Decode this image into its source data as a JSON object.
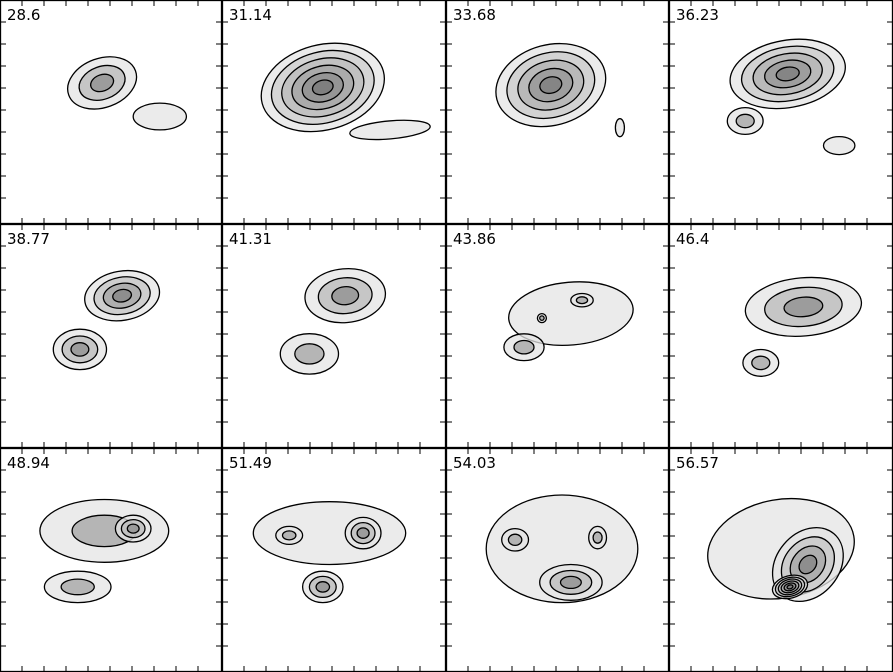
{
  "chart_data": {
    "type": "contour",
    "layout": {
      "rows": 3,
      "cols": 4
    },
    "panels": [
      {
        "label": "28.6",
        "blobs": [
          {
            "x": 0.46,
            "y": 0.37,
            "sx": 0.16,
            "sy": 0.11,
            "rot": -20,
            "levels": 3
          },
          {
            "x": 0.72,
            "y": 0.52,
            "sx": 0.12,
            "sy": 0.06,
            "rot": 0,
            "levels": 1
          }
        ]
      },
      {
        "label": "31.14",
        "blobs": [
          {
            "x": 0.45,
            "y": 0.39,
            "sx": 0.28,
            "sy": 0.19,
            "rot": -15,
            "levels": 6
          },
          {
            "x": 0.75,
            "y": 0.58,
            "sx": 0.18,
            "sy": 0.04,
            "rot": -5,
            "levels": 1
          }
        ]
      },
      {
        "label": "33.68",
        "blobs": [
          {
            "x": 0.47,
            "y": 0.38,
            "sx": 0.25,
            "sy": 0.18,
            "rot": -15,
            "levels": 5
          },
          {
            "x": 0.78,
            "y": 0.57,
            "sx": 0.02,
            "sy": 0.04,
            "rot": 0,
            "levels": 1
          }
        ]
      },
      {
        "label": "36.23",
        "blobs": [
          {
            "x": 0.53,
            "y": 0.33,
            "sx": 0.26,
            "sy": 0.15,
            "rot": -10,
            "levels": 5
          },
          {
            "x": 0.34,
            "y": 0.54,
            "sx": 0.08,
            "sy": 0.06,
            "rot": 0,
            "levels": 2
          },
          {
            "x": 0.76,
            "y": 0.65,
            "sx": 0.07,
            "sy": 0.04,
            "rot": 0,
            "levels": 1
          }
        ]
      },
      {
        "label": "38.77",
        "blobs": [
          {
            "x": 0.55,
            "y": 0.32,
            "sx": 0.17,
            "sy": 0.11,
            "rot": -10,
            "levels": 4
          },
          {
            "x": 0.36,
            "y": 0.56,
            "sx": 0.12,
            "sy": 0.09,
            "rot": 0,
            "levels": 3
          }
        ]
      },
      {
        "label": "41.31",
        "blobs": [
          {
            "x": 0.55,
            "y": 0.32,
            "sx": 0.18,
            "sy": 0.12,
            "rot": -5,
            "levels": 3
          },
          {
            "x": 0.39,
            "y": 0.58,
            "sx": 0.13,
            "sy": 0.09,
            "rot": 0,
            "levels": 2
          }
        ]
      },
      {
        "label": "43.86",
        "blobs": [
          {
            "x": 0.56,
            "y": 0.4,
            "sx": 0.28,
            "sy": 0.14,
            "rot": -5,
            "levels": 1
          },
          {
            "x": 0.35,
            "y": 0.55,
            "sx": 0.09,
            "sy": 0.06,
            "rot": 0,
            "levels": 2
          },
          {
            "x": 0.61,
            "y": 0.34,
            "sx": 0.05,
            "sy": 0.03,
            "rot": 0,
            "levels": 2
          },
          {
            "x": 0.43,
            "y": 0.42,
            "sx": 0.02,
            "sy": 0.02,
            "rot": 0,
            "levels": 2
          }
        ]
      },
      {
        "label": "46.4",
        "blobs": [
          {
            "x": 0.6,
            "y": 0.37,
            "sx": 0.26,
            "sy": 0.13,
            "rot": -5,
            "levels": 3
          },
          {
            "x": 0.41,
            "y": 0.62,
            "sx": 0.08,
            "sy": 0.06,
            "rot": 0,
            "levels": 2
          }
        ]
      },
      {
        "label": "48.94",
        "blobs": [
          {
            "x": 0.47,
            "y": 0.37,
            "sx": 0.29,
            "sy": 0.14,
            "rot": 0,
            "levels": 2
          },
          {
            "x": 0.6,
            "y": 0.36,
            "sx": 0.08,
            "sy": 0.06,
            "rot": 0,
            "levels": 3
          },
          {
            "x": 0.35,
            "y": 0.62,
            "sx": 0.15,
            "sy": 0.07,
            "rot": 0,
            "levels": 2
          }
        ]
      },
      {
        "label": "51.49",
        "blobs": [
          {
            "x": 0.48,
            "y": 0.38,
            "sx": 0.34,
            "sy": 0.14,
            "rot": 0,
            "levels": 1
          },
          {
            "x": 0.63,
            "y": 0.38,
            "sx": 0.08,
            "sy": 0.07,
            "rot": 0,
            "levels": 3
          },
          {
            "x": 0.3,
            "y": 0.39,
            "sx": 0.06,
            "sy": 0.04,
            "rot": 0,
            "levels": 2
          },
          {
            "x": 0.45,
            "y": 0.62,
            "sx": 0.09,
            "sy": 0.07,
            "rot": 0,
            "levels": 3
          }
        ]
      },
      {
        "label": "54.03",
        "blobs": [
          {
            "x": 0.52,
            "y": 0.45,
            "sx": 0.34,
            "sy": 0.24,
            "rot": 0,
            "levels": 1
          },
          {
            "x": 0.56,
            "y": 0.6,
            "sx": 0.14,
            "sy": 0.08,
            "rot": 0,
            "levels": 3
          },
          {
            "x": 0.31,
            "y": 0.41,
            "sx": 0.06,
            "sy": 0.05,
            "rot": 0,
            "levels": 2
          },
          {
            "x": 0.68,
            "y": 0.4,
            "sx": 0.04,
            "sy": 0.05,
            "rot": 0,
            "levels": 2
          }
        ]
      },
      {
        "label": "56.57",
        "blobs": [
          {
            "x": 0.5,
            "y": 0.45,
            "sx": 0.33,
            "sy": 0.22,
            "rot": -10,
            "levels": 1
          },
          {
            "x": 0.62,
            "y": 0.52,
            "sx": 0.14,
            "sy": 0.18,
            "rot": 40,
            "levels": 4
          },
          {
            "x": 0.54,
            "y": 0.62,
            "sx": 0.08,
            "sy": 0.05,
            "rot": -15,
            "levels": 6
          }
        ]
      }
    ],
    "grid": false,
    "colormap": "grayscale"
  }
}
